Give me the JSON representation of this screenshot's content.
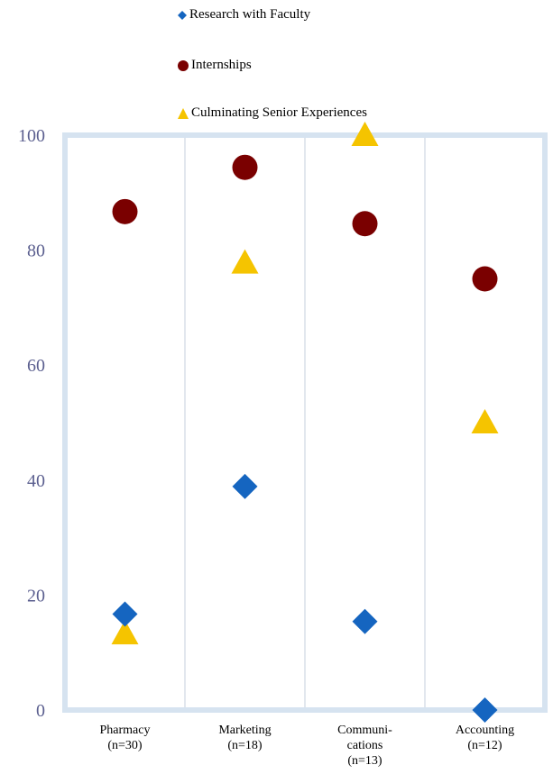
{
  "chart_data": {
    "type": "scatter",
    "categories": [
      "Pharmacy\n(n=30)",
      "Marketing\n(n=18)",
      "Communi-\ncations\n(n=13)",
      "Accounting\n(n=12)"
    ],
    "series": [
      {
        "name": "Research with Faculty",
        "marker": "diamond",
        "color": "#1565c0",
        "values": [
          16.7,
          38.9,
          15.4,
          0
        ]
      },
      {
        "name": "Internships",
        "marker": "circle",
        "color": "#7a0000",
        "values": [
          86.7,
          94.4,
          84.6,
          75
        ]
      },
      {
        "name": "Culminating Senior Experiences",
        "marker": "triangle",
        "color": "#f5c400",
        "values": [
          13.3,
          77.8,
          100,
          50
        ]
      }
    ],
    "ylim": [
      0,
      100
    ],
    "yticks": [
      0,
      20,
      40,
      60,
      80,
      100
    ],
    "legend_position": "top",
    "grid": "vertical separators",
    "frame_color": "#d6e3f0"
  }
}
